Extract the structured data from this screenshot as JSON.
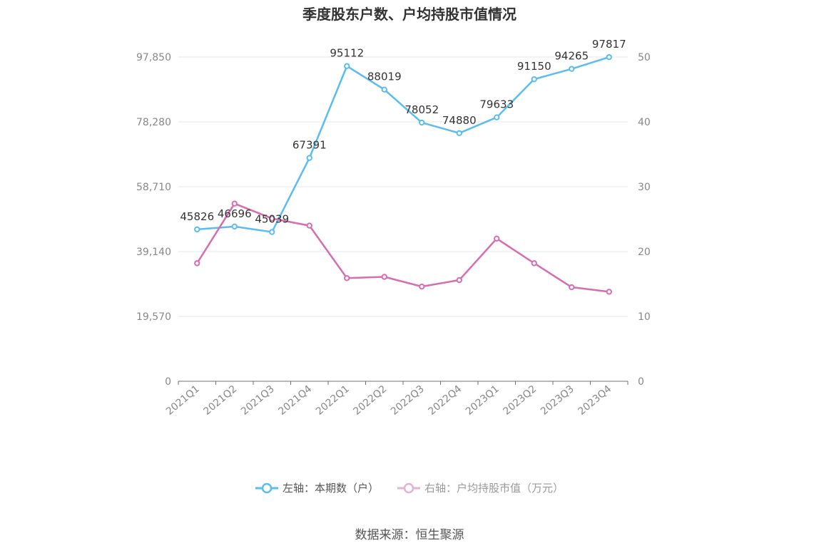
{
  "title": "季度股东户数、户均持股市值情况",
  "source": "数据来源：恒生聚源",
  "colors": {
    "left_series": "#5bbcef",
    "right_series": "#d66db0",
    "grid": "#e3e8ef",
    "axis_text": "#888888",
    "label_text": "#333333"
  },
  "legend": {
    "left_label": "左轴：本期数（户）",
    "right_label": "右轴：户均持股市值（万元）"
  },
  "chart_data": {
    "type": "line",
    "title": "季度股东户数、户均持股市值情况",
    "categories": [
      "2021Q1",
      "2021Q2",
      "2021Q3",
      "2021Q4",
      "2022Q1",
      "2022Q2",
      "2022Q3",
      "2022Q4",
      "2023Q1",
      "2023Q2",
      "2023Q3",
      "2023Q4"
    ],
    "left_axis": {
      "ylim": [
        0,
        97850
      ],
      "ticks": [
        0,
        19570,
        39140,
        58710,
        78280,
        97850
      ],
      "tick_labels": [
        "0",
        "19,570",
        "39,140",
        "58,710",
        "78,280",
        "97,850"
      ]
    },
    "right_axis": {
      "ylim": [
        0,
        50
      ],
      "ticks": [
        0,
        10,
        20,
        30,
        40,
        50
      ],
      "tick_labels": [
        "0",
        "10",
        "20",
        "30",
        "40",
        "50"
      ]
    },
    "series": [
      {
        "name": "左轴：本期数（户）",
        "axis": "left",
        "values": [
          45826,
          46696,
          45039,
          67391,
          95112,
          88019,
          78052,
          74880,
          79633,
          91150,
          94265,
          97817
        ],
        "data_labels": [
          "45826",
          "46696",
          "45039",
          "67391",
          "95112",
          "88019",
          "78052",
          "74880",
          "79633",
          "91150",
          "94265",
          "97817"
        ]
      },
      {
        "name": "右轴：户均持股市值（万元）",
        "axis": "right",
        "values": [
          18.2,
          27.4,
          25.1,
          24.0,
          15.9,
          16.1,
          14.6,
          15.6,
          22.0,
          18.2,
          14.5,
          13.8
        ]
      }
    ],
    "grid": true,
    "legend_position": "bottom"
  }
}
